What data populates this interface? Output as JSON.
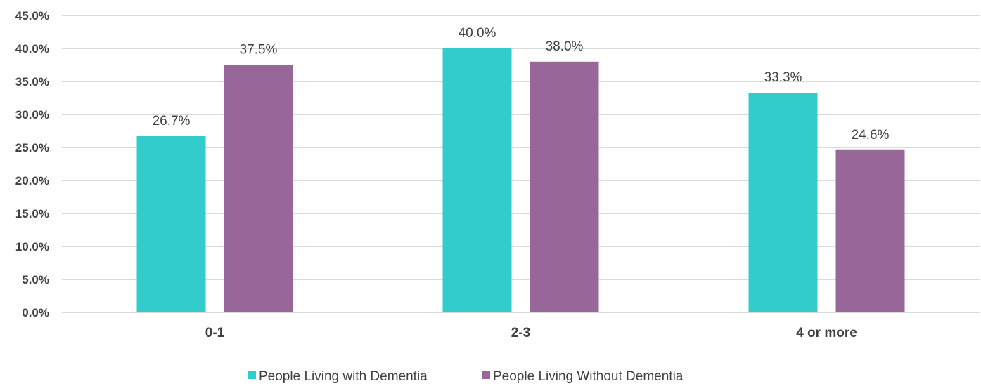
{
  "chart_data": {
    "type": "bar",
    "categories": [
      "0-1",
      "2-3",
      "4 or more"
    ],
    "series": [
      {
        "name": "People Living with Dementia",
        "color": "#33CCCC",
        "values": [
          26.7,
          40.0,
          33.3
        ],
        "labels": [
          "26.7%",
          "40.0%",
          "33.3%"
        ]
      },
      {
        "name": "People Living Without Dementia",
        "color": "#996699",
        "values": [
          37.5,
          38.0,
          24.6
        ],
        "labels": [
          "37.5%",
          "38.0%",
          "24.6%"
        ]
      }
    ],
    "yticks": [
      "0.0%",
      "5.0%",
      "10.0%",
      "15.0%",
      "20.0%",
      "25.0%",
      "30.0%",
      "35.0%",
      "40.0%",
      "45.0%"
    ],
    "ylim": [
      0,
      45
    ],
    "grid": true,
    "legend_position": "bottom",
    "gridline_color": "#D9D9D9"
  }
}
